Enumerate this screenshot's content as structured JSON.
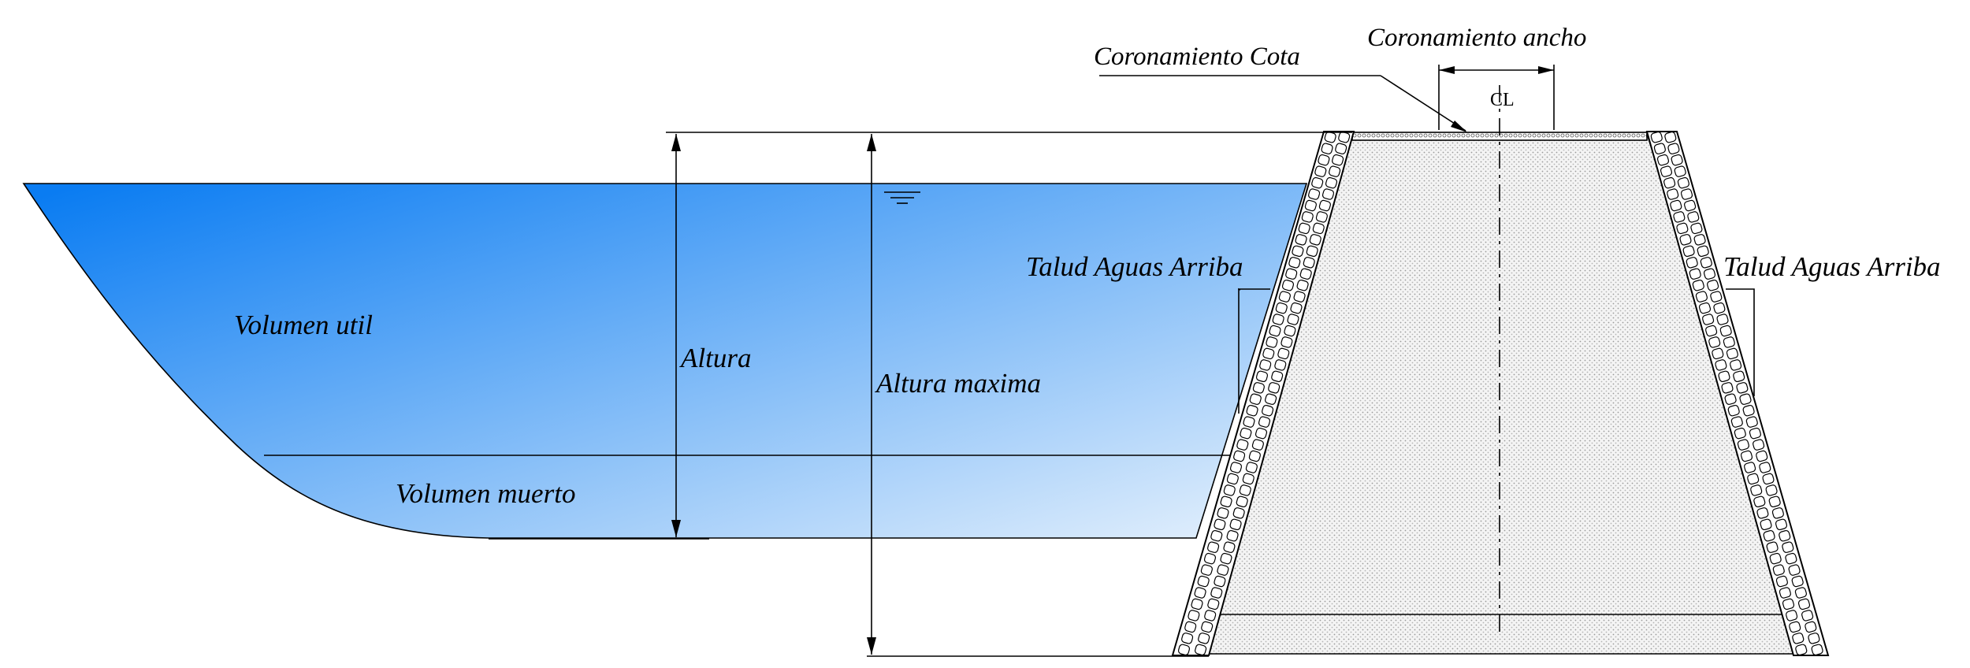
{
  "labels": {
    "crest_elevation": "Coronamiento Cota",
    "crest_width": "Coronamiento ancho",
    "centerline": "CL",
    "upstream_slope_left": "Talud Aguas Arriba",
    "upstream_slope_right": "Talud Aguas Arriba",
    "live_storage": "Volumen util",
    "dead_storage": "Volumen muerto",
    "height": "Altura",
    "max_height": "Altura maxima"
  },
  "colors": {
    "water_deep": "#0a7cf2",
    "water_light": "#e2effc",
    "line": "#000000",
    "fill_core": "#f0f0f0",
    "riprap": "#ffffff"
  }
}
